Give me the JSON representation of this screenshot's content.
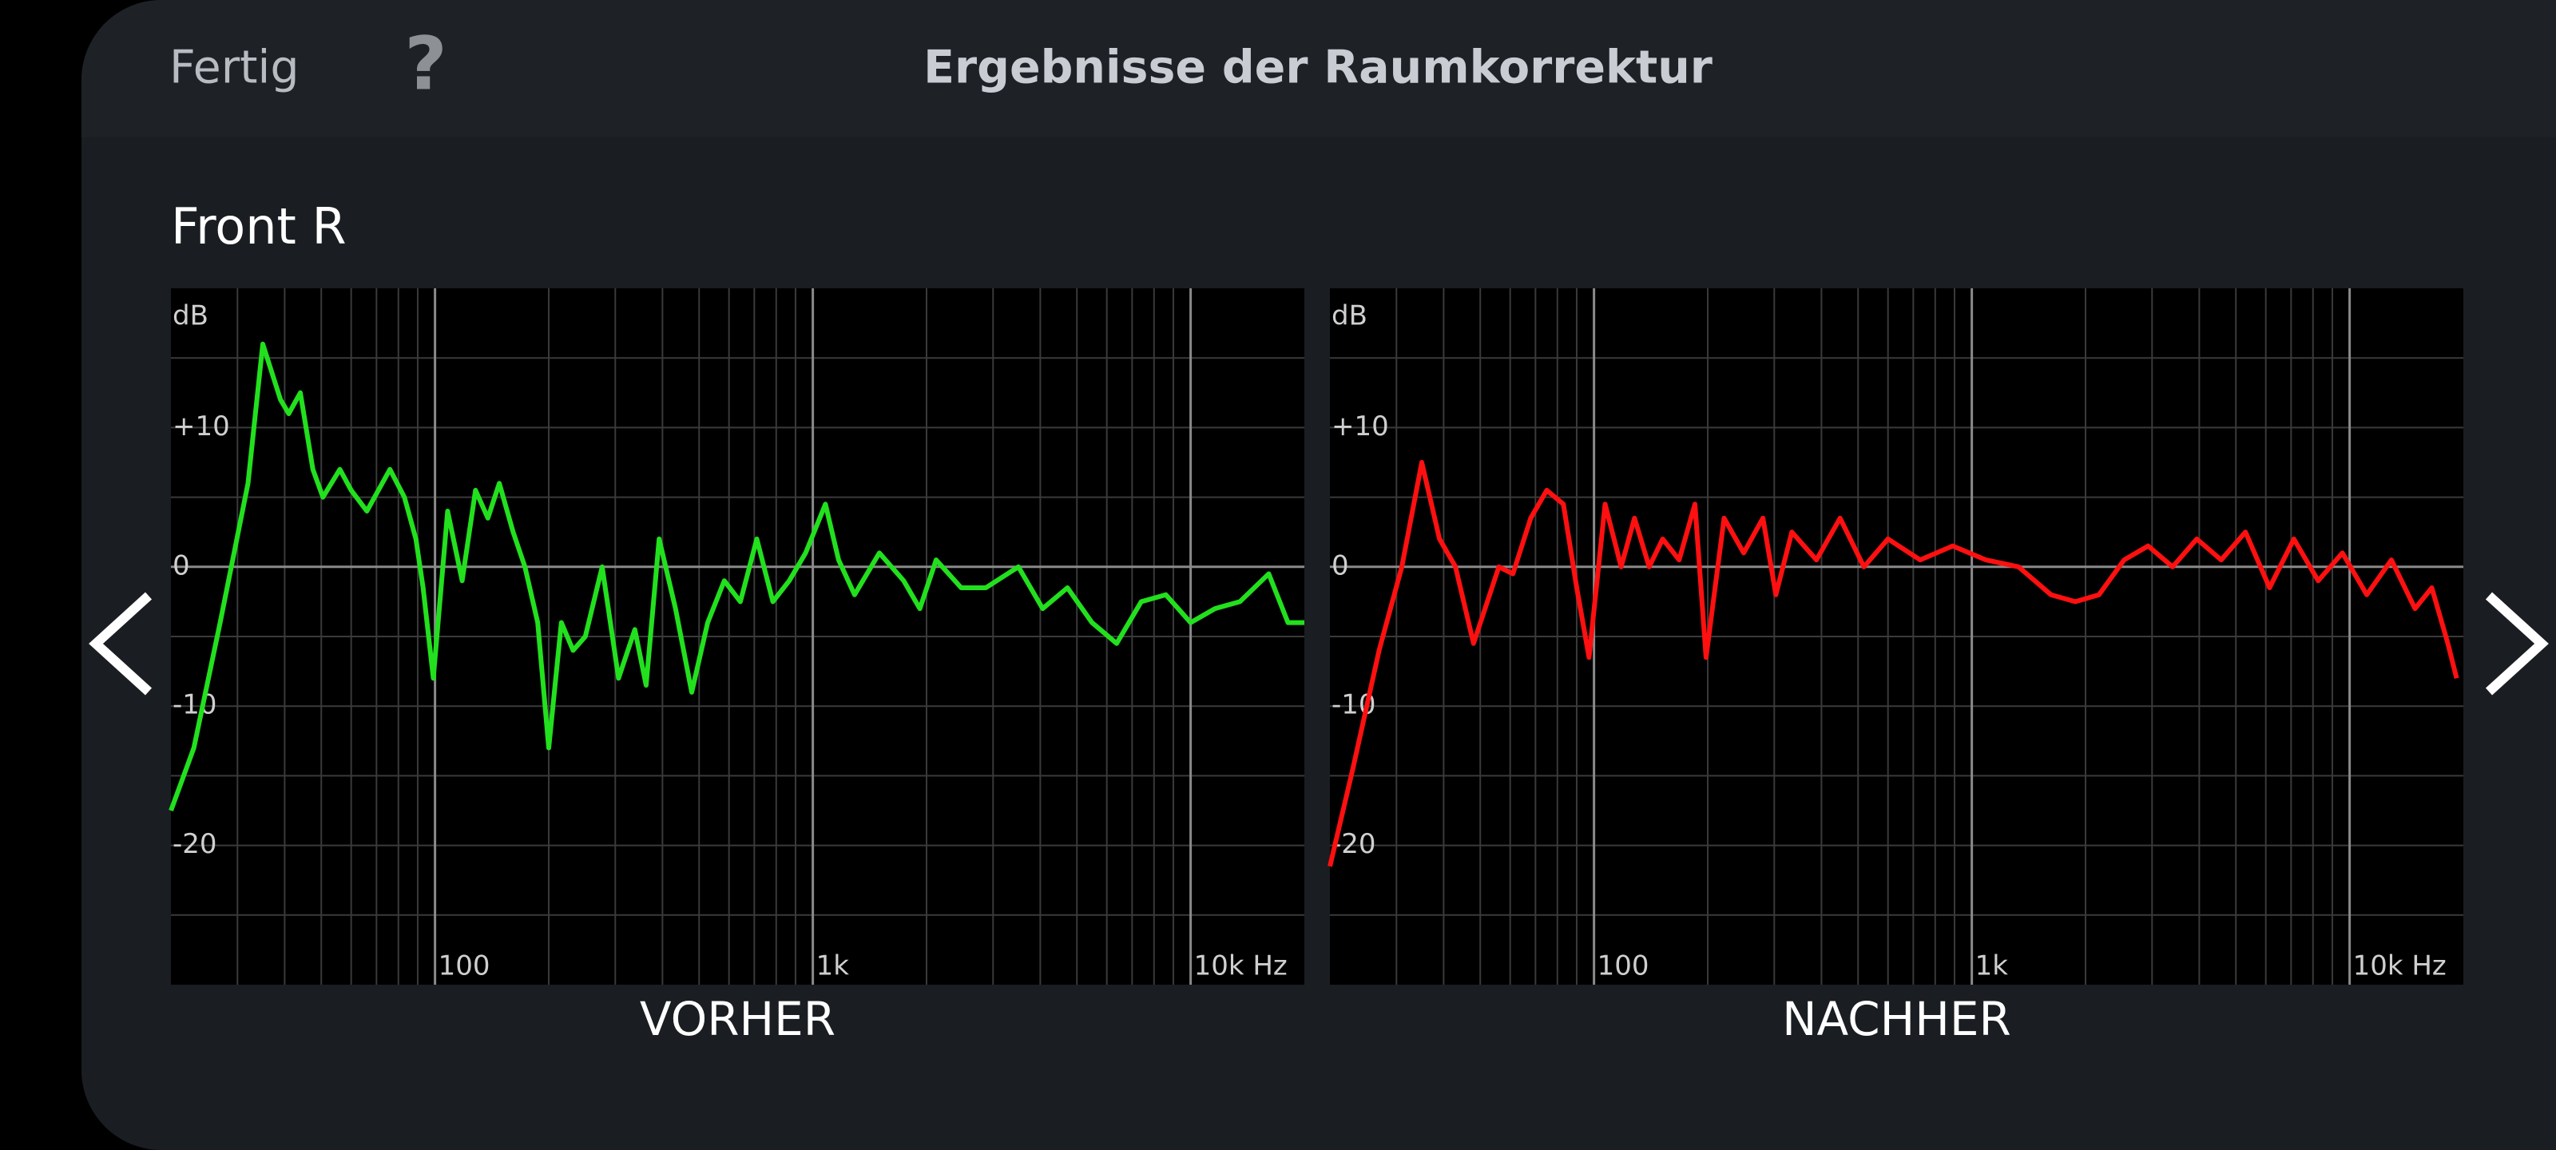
{
  "header": {
    "done": "Fertig",
    "help": "?",
    "title": "Ergebnisse der Raumkorrektur"
  },
  "section": "Front R",
  "chart_data": [
    {
      "type": "line",
      "title": "VORHER",
      "ylabel": "dB",
      "xscale": "log",
      "grid": true,
      "color": "#22e01e",
      "xlim": [
        20,
        20000
      ],
      "ylim": [
        -30,
        20
      ],
      "xticks": [
        {
          "value": 100,
          "label": "100"
        },
        {
          "value": 1000,
          "label": "1k"
        },
        {
          "value": 10000,
          "label": "10k Hz"
        }
      ],
      "minor_xticks": [
        30,
        40,
        50,
        60,
        70,
        80,
        90,
        200,
        300,
        400,
        500,
        600,
        700,
        800,
        900,
        2000,
        3000,
        4000,
        5000,
        6000,
        7000,
        8000,
        9000
      ],
      "yticks": [
        {
          "value": 10,
          "label": "+10"
        },
        0,
        -10,
        -20
      ],
      "minor_yticks": [
        15,
        5,
        -5,
        -15,
        -25
      ],
      "x": [
        20,
        23,
        27,
        32,
        35,
        39,
        41,
        44,
        47.5,
        50.5,
        56,
        60,
        66,
        76,
        83,
        89,
        93,
        99,
        108,
        118,
        128,
        138,
        148,
        161,
        173,
        187,
        200,
        216,
        232,
        250,
        277,
        306,
        338,
        362,
        392,
        433,
        478,
        527,
        583,
        643,
        711,
        784,
        866,
        957,
        1080,
        1170,
        1290,
        1500,
        1740,
        1920,
        2120,
        2470,
        2870,
        3500,
        4060,
        4720,
        5480,
        6370,
        7400,
        8600,
        10000,
        11600,
        13500,
        16100,
        18100,
        20000
      ],
      "values": [
        -17.5,
        -13,
        -4,
        6,
        16,
        12,
        11,
        12.5,
        7,
        5,
        7,
        5.5,
        4,
        7,
        5,
        2,
        -1.5,
        -8,
        4,
        -1,
        5.5,
        3.5,
        6,
        2.5,
        0,
        -4,
        -13,
        -4,
        -6,
        -5,
        0,
        -8,
        -4.5,
        -8.5,
        2,
        -3,
        -9,
        -4,
        -1,
        -2.5,
        2,
        -2.5,
        -1,
        1,
        4.5,
        0.5,
        -2,
        1,
        -1,
        -3,
        0.5,
        -1.5,
        -1.5,
        0,
        -3,
        -1.5,
        -4,
        -5.5,
        -2.5,
        -2,
        -4,
        -3,
        -2.5,
        -0.5,
        -4,
        -4
      ]
    },
    {
      "type": "line",
      "title": "NACHHER",
      "ylabel": "dB",
      "xscale": "log",
      "grid": true,
      "color": "#ff1010",
      "xlim": [
        20,
        20000
      ],
      "ylim": [
        -30,
        20
      ],
      "xticks": [
        {
          "value": 100,
          "label": "100"
        },
        {
          "value": 1000,
          "label": "1k"
        },
        {
          "value": 10000,
          "label": "10k Hz"
        }
      ],
      "minor_xticks": [
        30,
        40,
        50,
        60,
        70,
        80,
        90,
        200,
        300,
        400,
        500,
        600,
        700,
        800,
        900,
        2000,
        3000,
        4000,
        5000,
        6000,
        7000,
        8000,
        9000
      ],
      "yticks": [
        {
          "value": 10,
          "label": "+10"
        },
        0,
        -10,
        -20
      ],
      "minor_yticks": [
        15,
        5,
        -5,
        -15,
        -25
      ],
      "x": [
        20,
        23,
        27,
        31,
        35,
        39,
        43,
        48,
        56,
        61,
        68,
        75,
        83,
        90,
        97,
        107,
        118,
        128,
        140,
        152,
        168,
        185,
        198,
        221,
        249,
        280,
        303,
        334,
        388,
        448,
        518,
        600,
        730,
        890,
        1090,
        1330,
        1620,
        1880,
        2170,
        2530,
        2930,
        3400,
        3940,
        4570,
        5300,
        6140,
        7120,
        8260,
        9570,
        11100,
        12900,
        14900,
        16500,
        18200,
        19200
      ],
      "values": [
        -21.5,
        -14.5,
        -6,
        0,
        7.5,
        2,
        0,
        -5.5,
        0,
        -0.5,
        3.5,
        5.5,
        4.5,
        -1.5,
        -6.5,
        4.5,
        0,
        3.5,
        0,
        2,
        0.5,
        4.5,
        -6.5,
        3.5,
        1,
        3.5,
        -2,
        2.5,
        0.5,
        3.5,
        0,
        2,
        0.5,
        1.5,
        0.5,
        0,
        -2,
        -2.5,
        -2,
        0.5,
        1.5,
        0,
        2,
        0.5,
        2.5,
        -1.5,
        2,
        -1,
        1,
        -2,
        0.5,
        -3,
        -1.5,
        -5.5,
        -8
      ]
    }
  ]
}
